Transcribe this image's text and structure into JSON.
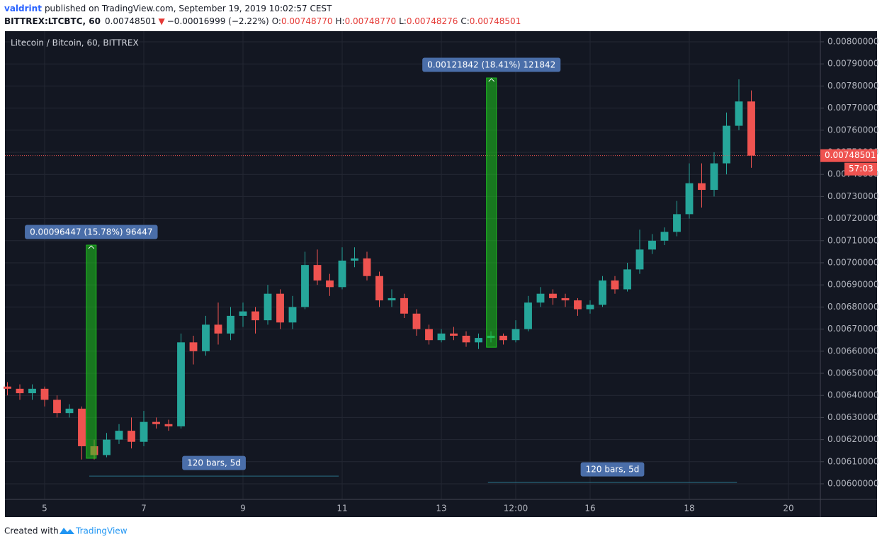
{
  "header": {
    "author": "valdrint",
    "published": "published on TradingView.com, September 19, 2019 10:02:57 CEST",
    "symbol": "BITTREX:LTCBTC, 60",
    "price": "0.00748501",
    "arrow": "▼",
    "change": "−0.00016999 (−2.22%)",
    "ohlc": [
      [
        "O:",
        "0.00748770"
      ],
      [
        "H:",
        "0.00748770"
      ],
      [
        "L:",
        "0.00748276"
      ],
      [
        "C:",
        "0.00748501"
      ]
    ]
  },
  "chart_data": {
    "type": "candlestick",
    "title": "Litecoin / Bitcoin, 60, BITTREX",
    "x": [
      4.25,
      4.5,
      4.75,
      5,
      5.25,
      5.5,
      5.75,
      6,
      6.25,
      6.5,
      6.75,
      7,
      7.25,
      7.5,
      7.75,
      8,
      8.25,
      8.5,
      8.75,
      9,
      9.25,
      9.5,
      9.75,
      10,
      10.25,
      10.5,
      10.75,
      11,
      11.25,
      11.5,
      11.75,
      12,
      12.25,
      12.5,
      12.75,
      13,
      13.25,
      13.5,
      13.75,
      14,
      14.25,
      14.5,
      14.75,
      15,
      15.25,
      15.5,
      15.75,
      16,
      16.25,
      16.5,
      16.75,
      17,
      17.25,
      17.5,
      17.75,
      18,
      18.25,
      18.5,
      18.75,
      19,
      19.25
    ],
    "open": [
      0.00644,
      0.00643,
      0.00641,
      0.00643,
      0.00638,
      0.00632,
      0.00634,
      0.00617,
      0.00613,
      0.0062,
      0.00624,
      0.00619,
      0.00628,
      0.00627,
      0.00626,
      0.00664,
      0.0066,
      0.00672,
      0.00668,
      0.00676,
      0.00678,
      0.00674,
      0.00686,
      0.00673,
      0.0068,
      0.00699,
      0.00692,
      0.00689,
      0.00701,
      0.00702,
      0.00694,
      0.00683,
      0.00684,
      0.00677,
      0.0067,
      0.00665,
      0.00668,
      0.00667,
      0.00664,
      0.00666,
      0.00667,
      0.00665,
      0.0067,
      0.00682,
      0.00686,
      0.00684,
      0.00683,
      0.00679,
      0.00681,
      0.00692,
      0.00688,
      0.00697,
      0.00706,
      0.0071,
      0.00714,
      0.00722,
      0.00736,
      0.00733,
      0.00745,
      0.00762,
      0.00773
    ],
    "high": [
      0.00646,
      0.00645,
      0.00645,
      0.00644,
      0.0064,
      0.00636,
      0.00635,
      0.0062,
      0.00623,
      0.00627,
      0.0063,
      0.00633,
      0.0063,
      0.00629,
      0.00668,
      0.00667,
      0.00676,
      0.00682,
      0.0068,
      0.00682,
      0.0068,
      0.0069,
      0.00688,
      0.00685,
      0.00705,
      0.00706,
      0.00695,
      0.00707,
      0.00707,
      0.00705,
      0.00696,
      0.00688,
      0.00686,
      0.00679,
      0.00672,
      0.0067,
      0.00671,
      0.00669,
      0.00668,
      0.00669,
      0.00668,
      0.00674,
      0.00685,
      0.00689,
      0.00688,
      0.00686,
      0.00684,
      0.00683,
      0.00694,
      0.00694,
      0.007,
      0.00715,
      0.00713,
      0.00716,
      0.00728,
      0.00745,
      0.00745,
      0.0075,
      0.00768,
      0.00783,
      0.00778
    ],
    "low": [
      0.0064,
      0.00638,
      0.00638,
      0.00635,
      0.0063,
      0.0063,
      0.00611,
      0.00611,
      0.00612,
      0.00618,
      0.00616,
      0.00617,
      0.00625,
      0.00624,
      0.00625,
      0.00654,
      0.00658,
      0.00663,
      0.00665,
      0.00671,
      0.00668,
      0.00672,
      0.0067,
      0.0067,
      0.00679,
      0.0069,
      0.00685,
      0.00688,
      0.00698,
      0.00692,
      0.0068,
      0.0068,
      0.00675,
      0.00667,
      0.00663,
      0.00664,
      0.00665,
      0.00662,
      0.00661,
      0.00664,
      0.00663,
      0.00664,
      0.00669,
      0.0068,
      0.00681,
      0.0068,
      0.00676,
      0.00677,
      0.0068,
      0.00686,
      0.00687,
      0.00695,
      0.00704,
      0.00708,
      0.00712,
      0.0072,
      0.00725,
      0.0073,
      0.0074,
      0.0076,
      0.00743
    ],
    "close": [
      0.00643,
      0.00641,
      0.00643,
      0.00638,
      0.00632,
      0.00634,
      0.00617,
      0.00613,
      0.0062,
      0.00624,
      0.00619,
      0.00628,
      0.00627,
      0.00626,
      0.00664,
      0.0066,
      0.00672,
      0.00668,
      0.00676,
      0.00678,
      0.00674,
      0.00686,
      0.00673,
      0.0068,
      0.00699,
      0.00692,
      0.00689,
      0.00701,
      0.00702,
      0.00694,
      0.00683,
      0.00684,
      0.00677,
      0.0067,
      0.00665,
      0.00668,
      0.00667,
      0.00664,
      0.00666,
      0.00667,
      0.00665,
      0.0067,
      0.00682,
      0.00686,
      0.00684,
      0.00683,
      0.00679,
      0.00681,
      0.00692,
      0.00688,
      0.00697,
      0.00706,
      0.0071,
      0.00714,
      0.00722,
      0.00736,
      0.00733,
      0.00745,
      0.00762,
      0.00773,
      0.00748501
    ],
    "up_color": "#26a69a",
    "down_color": "#ef5350",
    "xlim": [
      4.2,
      20.643
    ],
    "xticks": [
      5,
      7,
      9,
      11,
      13,
      {
        "value": 14.5,
        "label": "12:00"
      },
      16,
      18,
      20
    ],
    "ylim": [
      0.0059295,
      0.0080481
    ],
    "yticks": [
      {
        "value": 0.006,
        "label": "0.00600000"
      },
      {
        "value": 0.0061,
        "label": "0.00610000"
      },
      {
        "value": 0.0062,
        "label": "0.00620000"
      },
      {
        "value": 0.0063,
        "label": "0.00630000"
      },
      {
        "value": 0.0064,
        "label": "0.00640000"
      },
      {
        "value": 0.0065,
        "label": "0.00650000"
      },
      {
        "value": 0.0066,
        "label": "0.00660000"
      },
      {
        "value": 0.0067,
        "label": "0.00670000"
      },
      {
        "value": 0.0068,
        "label": "0.00680000"
      },
      {
        "value": 0.0069,
        "label": "0.00690000"
      },
      {
        "value": 0.007,
        "label": "0.00700000"
      },
      {
        "value": 0.0071,
        "label": "0.00710000"
      },
      {
        "value": 0.0072,
        "label": "0.00720000"
      },
      {
        "value": 0.0073,
        "label": "0.00730000"
      },
      {
        "value": 0.0074,
        "label": "0.00740000"
      },
      {
        "value": 0.0075,
        "label": "0.00750000"
      },
      {
        "value": 0.0076,
        "label": "0.00760000"
      },
      {
        "value": 0.0077,
        "label": "0.00770000"
      },
      {
        "value": 0.0078,
        "label": "0.00780000"
      },
      {
        "value": 0.0079,
        "label": "0.00790000"
      },
      {
        "value": 0.008,
        "label": "0.00800000"
      }
    ],
    "grid": true,
    "last_price": 0.00748501,
    "countdown": "57:03",
    "measures": [
      {
        "label": "0.00096447 (15.78%) 96447",
        "x": 5.94,
        "from": 0.00611553,
        "to": 0.00708,
        "range_label": "120 bars, 5d",
        "range_x": [
          5.9,
          10.93
        ],
        "range_y": 0.006035
      },
      {
        "label": "0.00121842 (18.41%) 121842",
        "x": 14.01,
        "from": 0.006618,
        "to": 0.00783642,
        "range_label": "120 bars, 5d",
        "range_x": [
          13.94,
          18.96
        ],
        "range_y": 0.006006
      }
    ]
  },
  "footer": {
    "text": "Created with",
    "brand": "TradingView"
  }
}
